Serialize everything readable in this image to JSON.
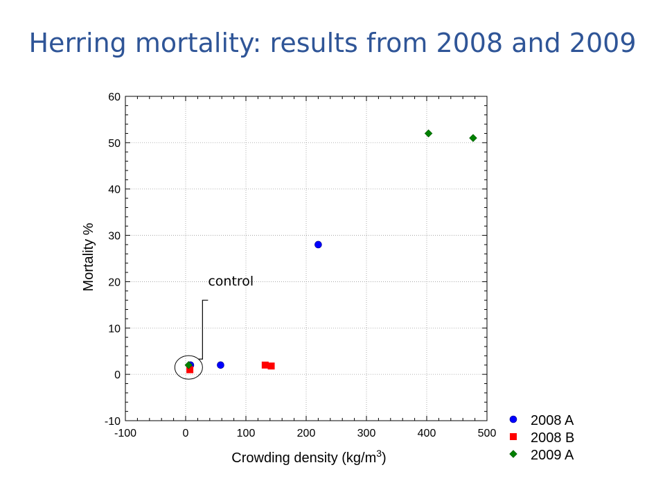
{
  "slide": {
    "title": "Herring mortality: results from 2008 and 2009"
  },
  "chart_data": {
    "type": "scatter",
    "xlabel": "Crowding density (kg/m",
    "xlabel_superscript": "3",
    "xlabel_close": ")",
    "ylabel": "Mortality %",
    "xlim": [
      -100,
      500
    ],
    "ylim": [
      -10,
      60
    ],
    "x_ticks": [
      -100,
      0,
      100,
      200,
      300,
      400,
      500
    ],
    "y_ticks": [
      -10,
      0,
      10,
      20,
      30,
      40,
      50,
      60
    ],
    "grid": true,
    "legend_position": "bottom-right outside",
    "series": [
      {
        "name": "2008 A",
        "marker": "circle",
        "color": "#0000FF",
        "points": [
          [
            8,
            2
          ],
          [
            58,
            2
          ],
          [
            220,
            28
          ]
        ]
      },
      {
        "name": "2008 B",
        "marker": "square",
        "color": "#FF0000",
        "points": [
          [
            7,
            1
          ],
          [
            132,
            2
          ],
          [
            142,
            1.8
          ]
        ]
      },
      {
        "name": "2009 A",
        "marker": "diamond",
        "color": "#008000",
        "points": [
          [
            5,
            2
          ],
          [
            403,
            52
          ],
          [
            477,
            51
          ]
        ]
      }
    ],
    "annotations": [
      {
        "text": "control",
        "target": [
          5,
          1.5
        ]
      }
    ]
  }
}
